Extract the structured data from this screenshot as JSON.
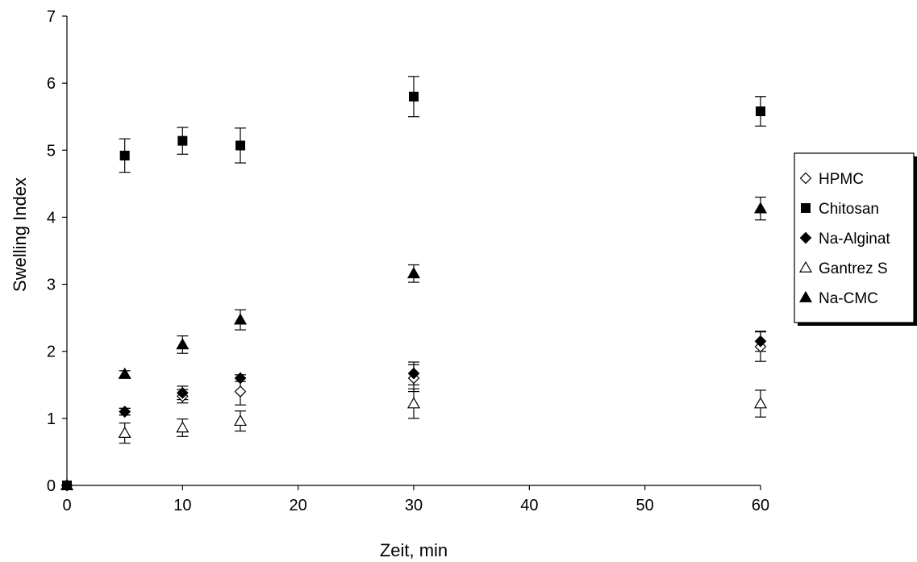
{
  "chart_data": {
    "type": "scatter",
    "title": "",
    "xlabel": "Zeit, min",
    "ylabel": "Swelling Index",
    "xlim": [
      0,
      60
    ],
    "ylim": [
      0,
      7
    ],
    "x_ticks": [
      0,
      10,
      20,
      30,
      40,
      50,
      60
    ],
    "y_ticks": [
      0,
      1,
      2,
      3,
      4,
      5,
      6,
      7
    ],
    "x_tick_labels": [
      "0",
      "10",
      "20",
      "30",
      "40",
      "50",
      "60"
    ],
    "y_tick_labels": [
      "0",
      "1",
      "2",
      "3",
      "4",
      "5",
      "6",
      "7"
    ],
    "grid": false,
    "legend_position": "right",
    "series": [
      {
        "name": "HPMC",
        "marker": "diamond-open",
        "color": "#000000",
        "points": [
          {
            "x": 0,
            "y": 0,
            "err": 0
          },
          {
            "x": 5,
            "y": 1.1,
            "err": 0.05
          },
          {
            "x": 10,
            "y": 1.33,
            "err": 0.1
          },
          {
            "x": 15,
            "y": 1.4,
            "err": 0.2
          },
          {
            "x": 30,
            "y": 1.6,
            "err": 0.2
          },
          {
            "x": 60,
            "y": 2.07,
            "err": 0.22
          }
        ]
      },
      {
        "name": "Chitosan",
        "marker": "square-filled",
        "color": "#000000",
        "points": [
          {
            "x": 0,
            "y": 0,
            "err": 0
          },
          {
            "x": 5,
            "y": 4.92,
            "err": 0.25
          },
          {
            "x": 10,
            "y": 5.14,
            "err": 0.2
          },
          {
            "x": 15,
            "y": 5.07,
            "err": 0.26
          },
          {
            "x": 30,
            "y": 5.8,
            "err": 0.3
          },
          {
            "x": 60,
            "y": 5.58,
            "err": 0.22
          }
        ]
      },
      {
        "name": "Na-Alginat",
        "marker": "diamond-filled",
        "color": "#000000",
        "points": [
          {
            "x": 0,
            "y": 0,
            "err": 0
          },
          {
            "x": 5,
            "y": 1.1,
            "err": 0.05
          },
          {
            "x": 10,
            "y": 1.38,
            "err": 0.1
          },
          {
            "x": 15,
            "y": 1.6,
            "err": 0.05
          },
          {
            "x": 30,
            "y": 1.67,
            "err": 0.17
          },
          {
            "x": 60,
            "y": 2.15,
            "err": 0.15
          }
        ]
      },
      {
        "name": "Gantrez S",
        "marker": "triangle-open",
        "color": "#000000",
        "points": [
          {
            "x": 0,
            "y": 0,
            "err": 0
          },
          {
            "x": 5,
            "y": 0.78,
            "err": 0.15
          },
          {
            "x": 10,
            "y": 0.86,
            "err": 0.13
          },
          {
            "x": 15,
            "y": 0.96,
            "err": 0.15
          },
          {
            "x": 30,
            "y": 1.22,
            "err": 0.22
          },
          {
            "x": 60,
            "y": 1.22,
            "err": 0.2
          }
        ]
      },
      {
        "name": "Na-CMC",
        "marker": "triangle-filled",
        "color": "#000000",
        "points": [
          {
            "x": 0,
            "y": 0,
            "err": 0
          },
          {
            "x": 5,
            "y": 1.66,
            "err": 0.05
          },
          {
            "x": 10,
            "y": 2.1,
            "err": 0.13
          },
          {
            "x": 15,
            "y": 2.47,
            "err": 0.15
          },
          {
            "x": 30,
            "y": 3.16,
            "err": 0.13
          },
          {
            "x": 60,
            "y": 4.13,
            "err": 0.17
          }
        ]
      }
    ]
  }
}
